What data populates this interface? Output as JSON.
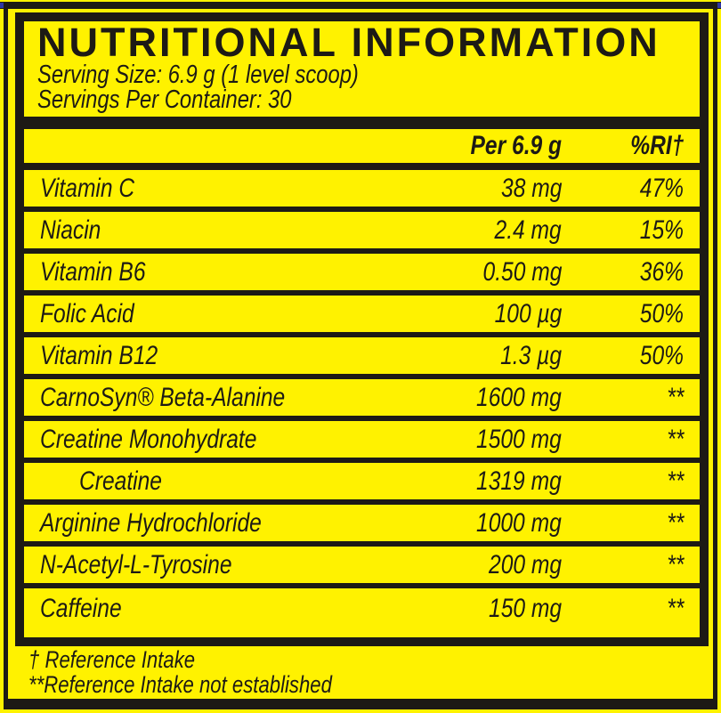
{
  "label": {
    "title": "NUTRITIONAL INFORMATION",
    "serving_size": "Serving Size: 6.9 g (1 level scoop)",
    "servings_per_container": "Servings Per Container: 30",
    "columns": {
      "amount": "Per 6.9 g",
      "ri": "%RI†"
    },
    "rows": [
      {
        "name": "Vitamin C",
        "amount": "38 mg",
        "ri": "47%"
      },
      {
        "name": "Niacin",
        "amount": "2.4 mg",
        "ri": "15%"
      },
      {
        "name": "Vitamin B6",
        "amount": "0.50 mg",
        "ri": "36%"
      },
      {
        "name": "Folic Acid",
        "amount": "100 µg",
        "ri": "50%"
      },
      {
        "name": "Vitamin B12",
        "amount": "1.3 µg",
        "ri": "50%"
      },
      {
        "name": "CarnoSyn® Beta-Alanine",
        "amount": "1600 mg",
        "ri": "**"
      },
      {
        "name": "Creatine Monohydrate",
        "amount": "1500 mg",
        "ri": "**"
      },
      {
        "name": "Creatine",
        "amount": "1319 mg",
        "ri": "**",
        "indent": true
      },
      {
        "name": "Arginine Hydrochloride",
        "amount": "1000 mg",
        "ri": "**"
      },
      {
        "name": "N-Acetyl-L-Tyrosine",
        "amount": "200 mg",
        "ri": "**"
      },
      {
        "name": "Caffeine",
        "amount": "150 mg",
        "ri": "**"
      }
    ],
    "footnotes": [
      "† Reference Intake",
      "**Reference Intake not established"
    ]
  },
  "colors": {
    "background_yellow": "#FFF200",
    "ink_black": "#1D1A15",
    "trim_blue": "#2E37A4"
  }
}
